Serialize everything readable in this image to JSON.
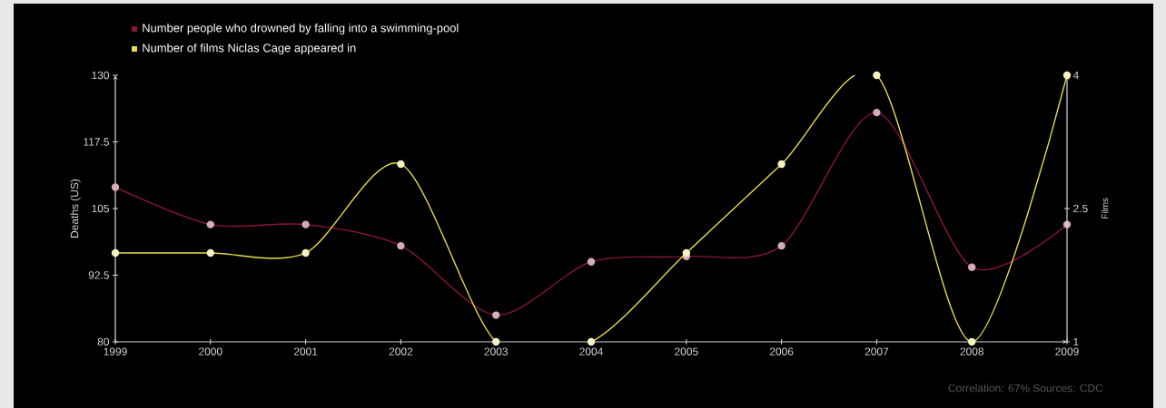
{
  "chart_data": {
    "type": "line",
    "x": [
      1999,
      2000,
      2001,
      2002,
      2003,
      2004,
      2005,
      2006,
      2007,
      2008,
      2009
    ],
    "series": [
      {
        "name": "Number people who drowned by falling into a swimming-pool",
        "color": "#8a1538",
        "values": [
          109,
          102,
          102,
          98,
          85,
          95,
          96,
          98,
          123,
          94,
          102
        ]
      },
      {
        "name": "Number of films Niclas Cage appeared in",
        "color": "#e5dc50",
        "axis": "y2",
        "values": [
          2,
          2,
          2,
          3,
          1,
          1,
          2,
          3,
          4,
          1,
          4
        ]
      }
    ],
    "xlim": [
      1999,
      2009
    ],
    "xticks": [
      1999,
      2000,
      2001,
      2002,
      2003,
      2004,
      2005,
      2006,
      2007,
      2008,
      2009
    ],
    "ylim": [
      80,
      130
    ],
    "yticks": [
      80,
      92.5,
      105,
      117.5,
      130
    ],
    "y2lim": [
      1,
      4
    ],
    "y2ticks": [
      1,
      2.5,
      4
    ],
    "ylabel": "Deaths (US)",
    "y2label": "Films",
    "annotations": [
      "Correlation: 67%   Sources: CDC"
    ],
    "legend": "top left",
    "marker": "circle",
    "grid": false
  }
}
